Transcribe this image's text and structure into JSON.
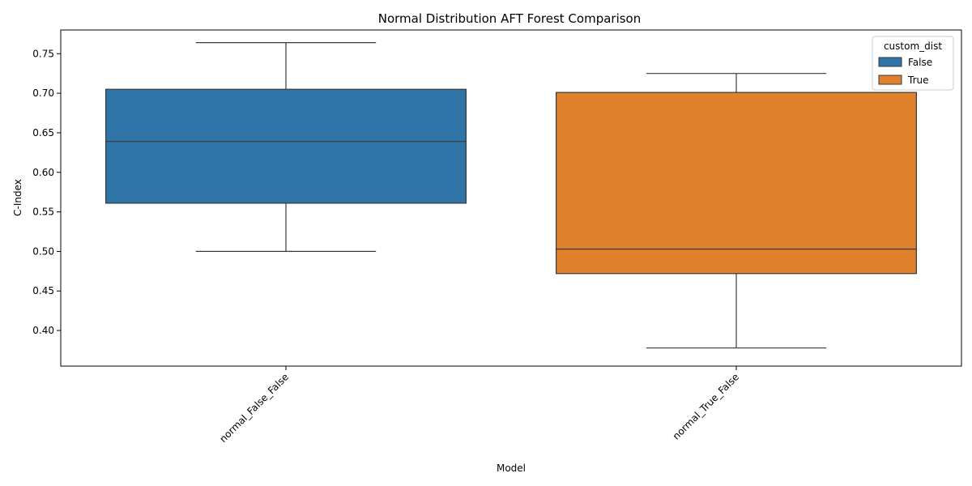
{
  "chart_data": {
    "type": "box",
    "title": "Normal Distribution AFT Forest Comparison",
    "xlabel": "Model",
    "ylabel": "C-Index",
    "categories": [
      "normal_False_False",
      "normal_True_False"
    ],
    "ylim": [
      0.355,
      0.78
    ],
    "yticks": [
      0.4,
      0.45,
      0.5,
      0.55,
      0.6,
      0.65,
      0.7,
      0.75
    ],
    "yticks_labels": [
      "0.40",
      "0.45",
      "0.50",
      "0.55",
      "0.60",
      "0.65",
      "0.70",
      "0.75"
    ],
    "legend": {
      "title": "custom_dist",
      "placement": "top-right",
      "entries": [
        {
          "label": "False",
          "color": "#2f74a6"
        },
        {
          "label": "True",
          "color": "#e0812e"
        }
      ]
    },
    "boxes": [
      {
        "category": "normal_False_False",
        "hue": "False",
        "color": "#2f74a6",
        "whisker_low": 0.5,
        "q1": 0.561,
        "median": 0.639,
        "q3": 0.705,
        "whisker_high": 0.764
      },
      {
        "category": "normal_True_False",
        "hue": "True",
        "color": "#e0812e",
        "whisker_low": 0.378,
        "q1": 0.472,
        "median": 0.503,
        "q3": 0.701,
        "whisker_high": 0.725
      }
    ],
    "grid": false
  }
}
